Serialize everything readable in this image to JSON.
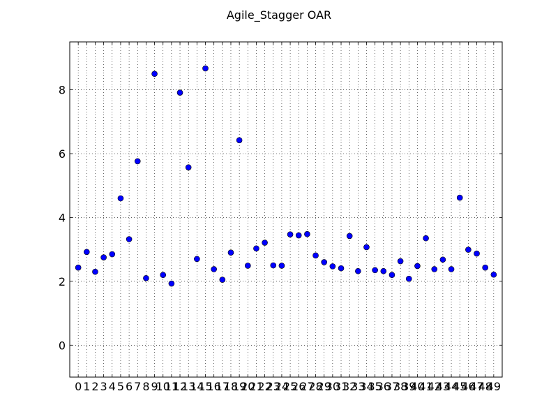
{
  "chart_data": {
    "type": "scatter",
    "title": "Agile_Stagger OAR",
    "xlabel": "",
    "ylabel": "",
    "xlim": [
      -1,
      50
    ],
    "ylim": [
      -1,
      9.5
    ],
    "yticks": [
      0,
      2,
      4,
      6,
      8
    ],
    "xticks": [
      0,
      1,
      2,
      3,
      4,
      5,
      6,
      7,
      8,
      9,
      10,
      11,
      12,
      13,
      14,
      15,
      16,
      17,
      18,
      19,
      20,
      21,
      22,
      23,
      24,
      25,
      26,
      27,
      28,
      29,
      30,
      31,
      32,
      33,
      34,
      35,
      36,
      37,
      38,
      39,
      40,
      41,
      42,
      43,
      44,
      45,
      46,
      47,
      48,
      49
    ],
    "grid": true,
    "legend": "none",
    "marker_color": "#0000ff",
    "x": [
      0,
      1,
      2,
      3,
      4,
      5,
      6,
      7,
      8,
      9,
      10,
      11,
      12,
      13,
      14,
      15,
      16,
      17,
      18,
      19,
      20,
      21,
      22,
      23,
      24,
      25,
      26,
      27,
      28,
      29,
      30,
      31,
      32,
      33,
      34,
      35,
      36,
      37,
      38,
      39,
      40,
      41,
      42,
      43,
      44,
      45,
      46,
      47,
      48,
      49
    ],
    "y": [
      2.43,
      2.92,
      2.3,
      2.75,
      2.85,
      4.6,
      3.32,
      5.76,
      2.1,
      8.5,
      2.2,
      1.93,
      7.91,
      5.57,
      2.7,
      8.67,
      2.38,
      2.05,
      2.9,
      6.42,
      2.49,
      3.03,
      3.21,
      2.5,
      2.49,
      3.47,
      3.44,
      3.48,
      2.81,
      2.6,
      2.47,
      2.41,
      3.42,
      2.32,
      3.07,
      2.35,
      2.32,
      2.2,
      2.63,
      2.08,
      2.48,
      3.35,
      2.38,
      2.68,
      2.38,
      4.62,
      2.99,
      2.87,
      2.43,
      2.21
    ]
  }
}
